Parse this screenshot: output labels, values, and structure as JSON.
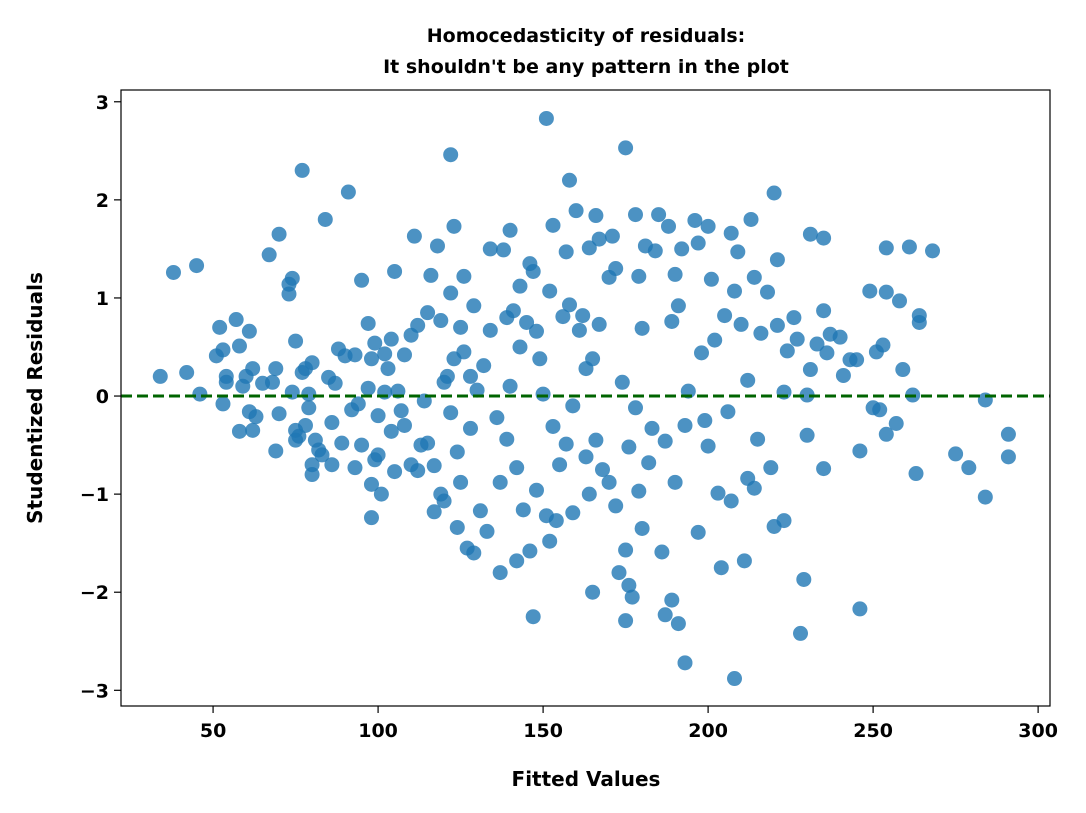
{
  "chart_data": {
    "type": "scatter",
    "title": "Homocedasticity of residuals:\nIt shouldn't be any pattern in the plot",
    "x_label": "Fitted Values",
    "y_label": "Studentized Residuals",
    "color": "#1f77b4",
    "reference_line": {
      "value": 0,
      "color": "#006400"
    },
    "xlim": [
      22.1,
      303.6
    ],
    "ylim": [
      -3.16,
      3.12
    ],
    "xticks": [
      50,
      100,
      150,
      200,
      250,
      300
    ],
    "yticks": [
      {
        "value": -3,
        "label": "−3"
      },
      {
        "value": -2,
        "label": "−2"
      },
      {
        "value": -1,
        "label": "−1"
      },
      0,
      1,
      2,
      3
    ],
    "x": [
      34,
      38,
      42,
      45,
      46,
      51,
      52,
      53,
      53,
      54,
      54,
      57,
      58,
      58,
      59,
      60,
      61,
      61,
      62,
      62,
      63,
      65,
      67,
      68,
      69,
      69,
      70,
      70,
      73,
      73,
      74,
      74,
      75,
      75,
      75,
      76,
      77,
      77,
      78,
      78,
      79,
      79,
      80,
      80,
      80,
      81,
      82,
      83,
      84,
      85,
      86,
      86,
      87,
      88,
      89,
      90,
      91,
      92,
      93,
      93,
      94,
      95,
      95,
      97,
      97,
      98,
      98,
      98,
      99,
      99,
      100,
      100,
      101,
      102,
      102,
      103,
      104,
      104,
      105,
      105,
      106,
      107,
      108,
      108,
      110,
      110,
      111,
      112,
      112,
      113,
      114,
      115,
      115,
      116,
      117,
      117,
      118,
      119,
      119,
      120,
      120,
      121,
      122,
      122,
      122,
      123,
      123,
      124,
      124,
      125,
      125,
      126,
      126,
      127,
      128,
      128,
      129,
      129,
      130,
      131,
      132,
      133,
      134,
      134,
      136,
      137,
      137,
      138,
      139,
      139,
      140,
      140,
      141,
      142,
      142,
      143,
      143,
      144,
      145,
      146,
      146,
      147,
      147,
      148,
      148,
      149,
      150,
      151,
      151,
      152,
      152,
      153,
      153,
      154,
      155,
      156,
      157,
      157,
      158,
      158,
      159,
      159,
      160,
      161,
      162,
      163,
      163,
      164,
      164,
      165,
      165,
      166,
      166,
      167,
      167,
      168,
      170,
      170,
      171,
      172,
      172,
      173,
      174,
      175,
      175,
      175,
      176,
      176,
      177,
      178,
      178,
      179,
      179,
      180,
      180,
      181,
      182,
      183,
      184,
      185,
      186,
      187,
      187,
      188,
      189,
      189,
      190,
      190,
      191,
      191,
      192,
      193,
      193,
      194,
      196,
      197,
      197,
      198,
      199,
      200,
      200,
      201,
      202,
      203,
      204,
      205,
      206,
      207,
      207,
      208,
      208,
      209,
      210,
      211,
      212,
      212,
      213,
      214,
      214,
      215,
      216,
      218,
      219,
      220,
      220,
      221,
      221,
      223,
      223,
      224,
      226,
      227,
      228,
      229,
      230,
      230,
      231,
      231,
      233,
      235,
      235,
      235,
      236,
      237,
      240,
      241,
      243,
      245,
      246,
      246,
      249,
      250,
      251,
      252,
      253,
      254,
      254,
      254,
      257,
      258,
      259,
      261,
      262,
      263,
      264,
      264,
      268,
      275,
      279,
      284,
      284,
      291,
      291
    ],
    "values": [
      0.2,
      1.26,
      0.24,
      1.33,
      0.02,
      0.41,
      0.7,
      -0.08,
      0.47,
      0.14,
      0.2,
      0.78,
      -0.36,
      0.51,
      0.1,
      0.2,
      -0.16,
      0.66,
      -0.35,
      0.28,
      -0.21,
      0.13,
      1.44,
      0.14,
      0.28,
      -0.56,
      -0.18,
      1.65,
      1.04,
      1.14,
      1.2,
      0.04,
      0.56,
      -0.35,
      -0.45,
      -0.41,
      0.24,
      2.3,
      0.28,
      -0.3,
      0.02,
      -0.12,
      0.34,
      -0.8,
      -0.7,
      -0.45,
      -0.55,
      -0.6,
      1.8,
      0.19,
      -0.27,
      -0.7,
      0.13,
      0.48,
      -0.48,
      0.41,
      2.08,
      -0.14,
      0.42,
      -0.73,
      -0.08,
      1.18,
      -0.5,
      0.74,
      0.08,
      -1.24,
      0.38,
      -0.9,
      0.54,
      -0.65,
      -0.2,
      -0.6,
      -1.0,
      0.43,
      0.04,
      0.28,
      0.58,
      -0.36,
      1.27,
      -0.77,
      0.05,
      -0.15,
      0.42,
      -0.3,
      0.62,
      -0.7,
      1.63,
      0.72,
      -0.76,
      -0.5,
      -0.05,
      0.85,
      -0.48,
      1.23,
      -1.18,
      -0.71,
      1.53,
      0.77,
      -1.0,
      0.14,
      -1.07,
      0.2,
      1.05,
      2.46,
      -0.17,
      1.73,
      0.38,
      -0.57,
      -1.34,
      0.7,
      -0.88,
      1.22,
      0.45,
      -1.55,
      0.2,
      -0.33,
      0.92,
      -1.6,
      0.06,
      -1.17,
      0.31,
      -1.38,
      1.5,
      0.67,
      -0.22,
      -0.88,
      -1.8,
      1.49,
      0.8,
      -0.44,
      1.69,
      0.1,
      0.87,
      -0.73,
      -1.68,
      1.12,
      0.5,
      -1.16,
      0.75,
      1.35,
      -1.58,
      -2.25,
      1.27,
      0.66,
      -0.96,
      0.38,
      0.02,
      2.83,
      -1.22,
      1.07,
      -1.48,
      1.74,
      -0.31,
      -1.27,
      -0.7,
      0.81,
      1.47,
      -0.49,
      2.2,
      0.93,
      -0.1,
      -1.19,
      1.89,
      0.67,
      0.82,
      -0.62,
      0.28,
      1.51,
      -1.0,
      -2.0,
      0.38,
      1.84,
      -0.45,
      1.6,
      0.73,
      -0.75,
      1.21,
      -0.88,
      1.63,
      -1.12,
      1.3,
      -1.8,
      0.14,
      2.53,
      -1.57,
      -2.29,
      -1.93,
      -0.52,
      -2.05,
      1.85,
      -0.12,
      1.22,
      -0.97,
      -1.35,
      0.69,
      1.53,
      -0.68,
      -0.33,
      1.48,
      1.85,
      -1.59,
      -2.23,
      -0.46,
      1.73,
      -2.08,
      0.76,
      -0.88,
      1.24,
      -2.32,
      0.92,
      1.5,
      -2.72,
      -0.3,
      0.05,
      1.79,
      -1.39,
      1.56,
      0.44,
      -0.25,
      1.73,
      -0.51,
      1.19,
      0.57,
      -0.99,
      -1.75,
      0.82,
      -0.16,
      -1.07,
      1.66,
      -2.88,
      1.07,
      1.47,
      0.73,
      -1.68,
      -0.84,
      0.16,
      1.8,
      1.21,
      -0.94,
      -0.44,
      0.64,
      1.06,
      -0.73,
      -1.33,
      2.07,
      1.39,
      0.72,
      0.04,
      -1.27,
      0.46,
      0.8,
      0.58,
      -2.42,
      -1.87,
      0.01,
      -0.4,
      1.65,
      0.27,
      0.53,
      0.87,
      -0.74,
      1.61,
      0.44,
      0.63,
      0.6,
      0.21,
      0.37,
      0.37,
      -0.56,
      -2.17,
      1.07,
      -0.12,
      0.45,
      -0.14,
      0.52,
      -0.39,
      1.51,
      1.06,
      -0.28,
      0.97,
      0.27,
      1.52,
      0.01,
      -0.79,
      0.75,
      0.82,
      1.48,
      -0.59,
      -0.73,
      -1.03,
      -0.04,
      -0.39,
      -0.62
    ]
  }
}
